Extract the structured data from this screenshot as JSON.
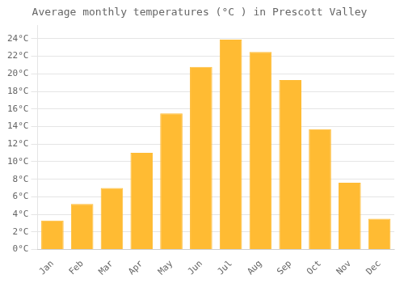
{
  "chart_data": {
    "type": "bar",
    "title": "Average monthly temperatures (°C ) in Prescott Valley",
    "categories": [
      "Jan",
      "Feb",
      "Mar",
      "Apr",
      "May",
      "Jun",
      "Jul",
      "Aug",
      "Sep",
      "Oct",
      "Nov",
      "Dec"
    ],
    "values": [
      3.3,
      5.2,
      7.0,
      11.0,
      15.5,
      20.8,
      23.9,
      22.5,
      19.3,
      13.7,
      7.6,
      3.5
    ],
    "color": "#FFBB33",
    "ylim": [
      0,
      25.5
    ],
    "yticks": [
      {
        "value": 0,
        "label": "0°C"
      },
      {
        "value": 2,
        "label": "2°C"
      },
      {
        "value": 4,
        "label": "4°C"
      },
      {
        "value": 6,
        "label": "6°C"
      },
      {
        "value": 8,
        "label": "8°C"
      },
      {
        "value": 10,
        "label": "10°C"
      },
      {
        "value": 12,
        "label": "12°C"
      },
      {
        "value": 14,
        "label": "14°C"
      },
      {
        "value": 16,
        "label": "16°C"
      },
      {
        "value": 18,
        "label": "18°C"
      },
      {
        "value": 20,
        "label": "20°C"
      },
      {
        "value": 22,
        "label": "22°C"
      },
      {
        "value": 24,
        "label": "24°C"
      }
    ],
    "grid": true
  }
}
